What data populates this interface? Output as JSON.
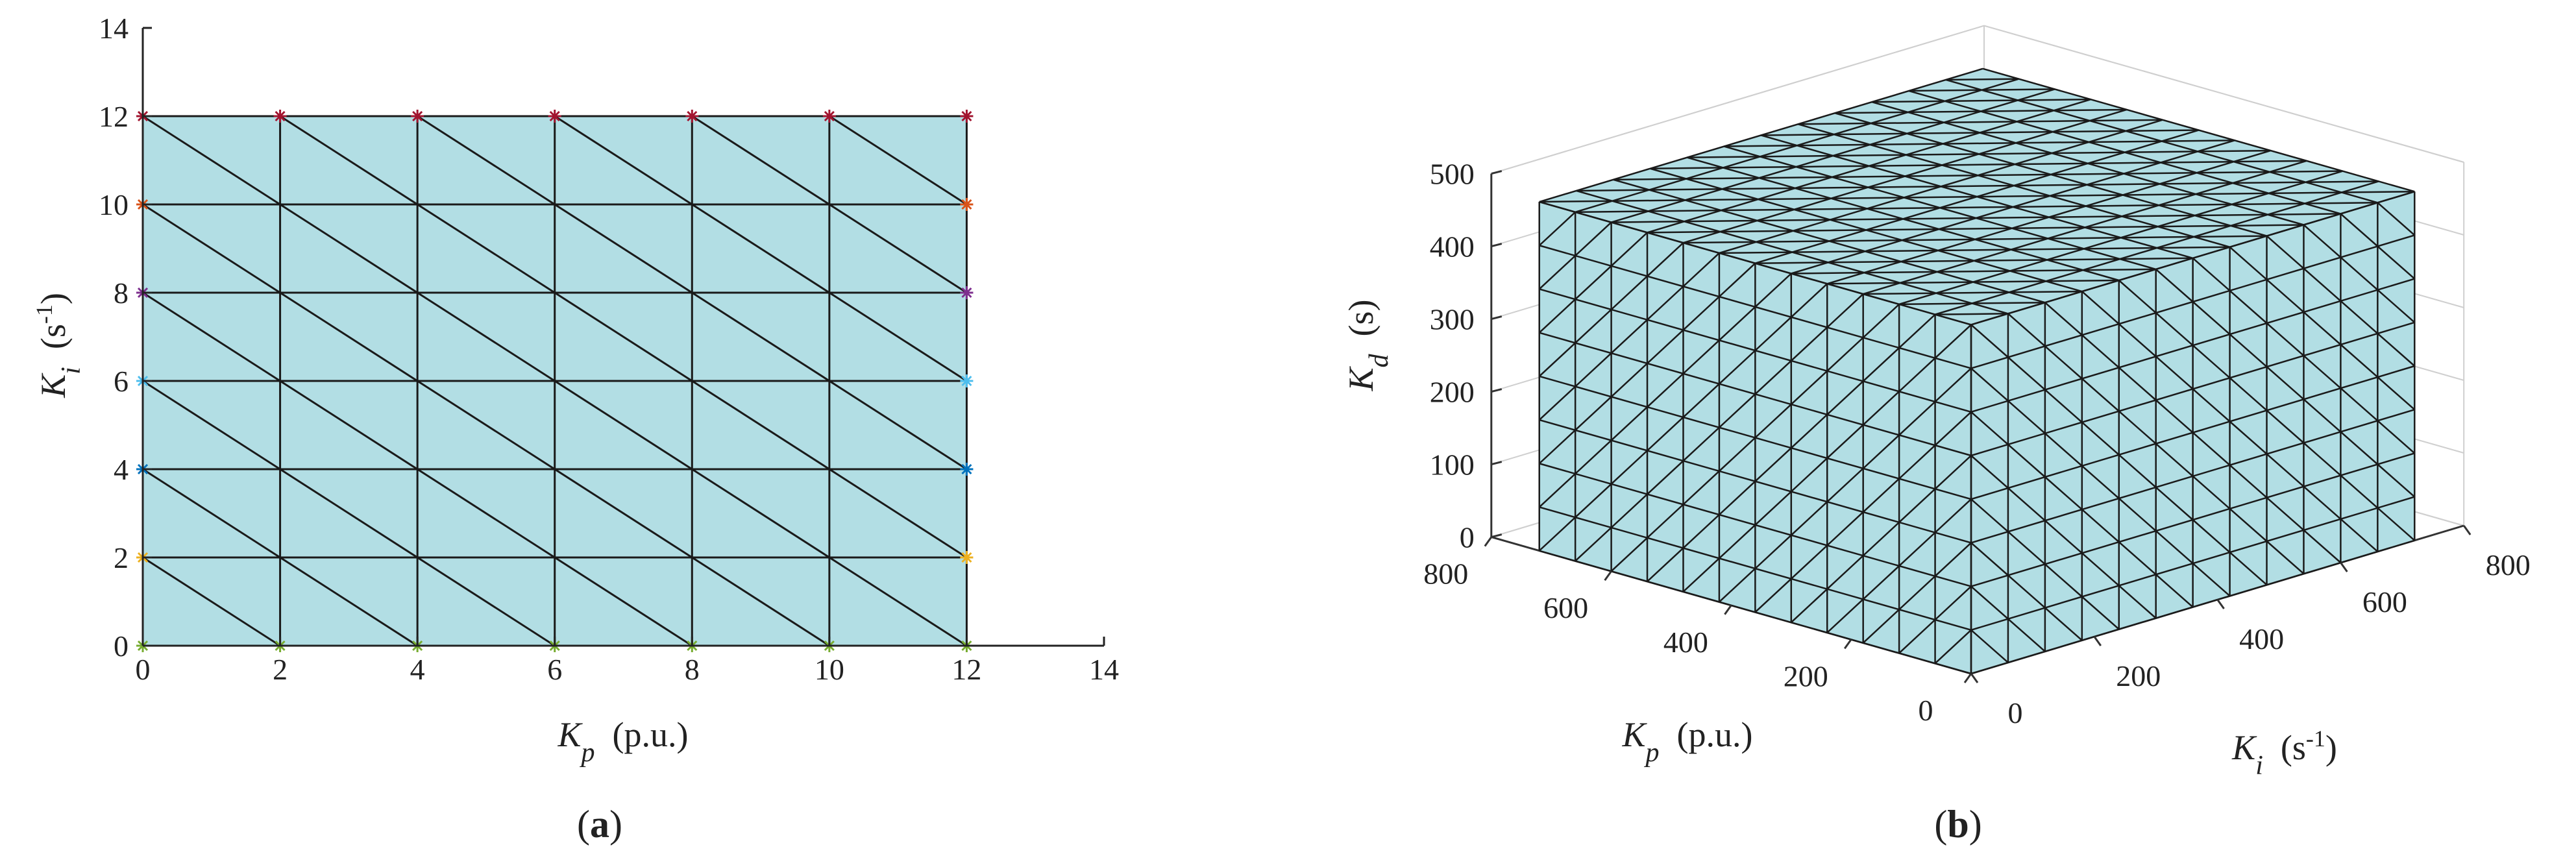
{
  "chart_data": [
    {
      "type": "mesh2d",
      "xlabel": [
        {
          "text": "K",
          "italic": true
        },
        {
          "text": "p",
          "sub": true,
          "italic": true
        },
        {
          "text": "  (p.u.)"
        }
      ],
      "ylabel": [
        {
          "text": "K",
          "italic": true
        },
        {
          "text": "i",
          "sub": true,
          "italic": true
        },
        {
          "text": "  (s"
        },
        {
          "text": "-1",
          "sup": true
        },
        {
          "text": ")"
        }
      ],
      "caption": [
        {
          "text": "("
        },
        {
          "text": "a",
          "bold": true
        },
        {
          "text": ")"
        }
      ],
      "grid_x": [
        0,
        2,
        4,
        6,
        8,
        10,
        12
      ],
      "grid_y": [
        0,
        2,
        4,
        6,
        8,
        10,
        12
      ],
      "xlim": [
        0,
        14
      ],
      "ylim": [
        0,
        14
      ],
      "xticks": [
        0,
        2,
        4,
        6,
        8,
        10,
        12,
        14
      ],
      "yticks": [
        0,
        2,
        4,
        6,
        8,
        10,
        12,
        14
      ],
      "color": "#b2dee4",
      "edge_color": "#1a1a1a",
      "marker_colors": [
        "#77ac30",
        "#edb120",
        "#0072bd",
        "#4dbeee",
        "#7e2f8e",
        "#d95319",
        "#a2142f"
      ]
    },
    {
      "type": "mesh3d",
      "xlabel": [
        {
          "text": "K",
          "italic": true
        },
        {
          "text": "p",
          "sub": true,
          "italic": true
        },
        {
          "text": "  (p.u.)"
        }
      ],
      "ylabel": [
        {
          "text": "K",
          "italic": true
        },
        {
          "text": "i",
          "sub": true,
          "italic": true
        },
        {
          "text": "  (s"
        },
        {
          "text": "-1",
          "sup": true
        },
        {
          "text": ")"
        }
      ],
      "zlabel": [
        {
          "text": "K",
          "italic": true
        },
        {
          "text": "d",
          "sub": true,
          "italic": true
        },
        {
          "text": "  (s)"
        }
      ],
      "caption": [
        {
          "text": "("
        },
        {
          "text": "b",
          "bold": true
        },
        {
          "text": ")"
        }
      ],
      "grid_x": [
        0,
        60,
        120,
        180,
        240,
        300,
        360,
        420,
        480,
        540,
        600,
        660,
        720
      ],
      "grid_y": [
        0,
        60,
        120,
        180,
        240,
        300,
        360,
        420,
        480,
        540,
        600,
        660,
        720
      ],
      "grid_z": [
        0,
        60,
        120,
        180,
        240,
        300,
        360,
        420,
        480
      ],
      "xlim": [
        0,
        800
      ],
      "ylim": [
        0,
        800
      ],
      "zlim": [
        0,
        500
      ],
      "xticks": [
        0,
        200,
        400,
        600,
        800
      ],
      "yticks": [
        0,
        200,
        400,
        600,
        800
      ],
      "zticks": [
        0,
        100,
        200,
        300,
        400,
        500
      ],
      "color": "#b2dee4",
      "edge_color": "#1a1a1a"
    }
  ]
}
